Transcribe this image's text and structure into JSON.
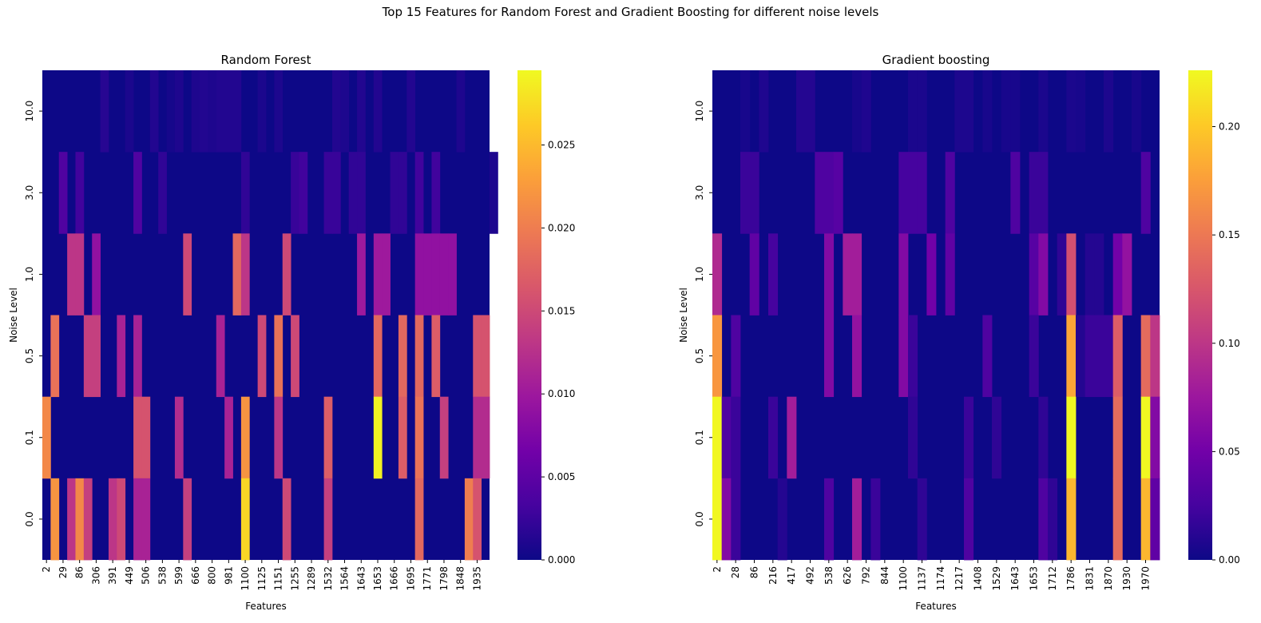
{
  "suptitle": "Top 15 Features for Random Forest and Gradient Boosting for different noise levels",
  "colormap": [
    "#0d0887",
    "#46039f",
    "#7201a8",
    "#9c179e",
    "#bd3786",
    "#d8576b",
    "#ed7953",
    "#fb9f3a",
    "#fdca26",
    "#f0f921"
  ],
  "chart_data": [
    {
      "type": "heatmap",
      "title": "Random Forest",
      "xlabel": "Features",
      "ylabel": "Noise Level",
      "rows": [
        "10.0",
        "3.0",
        "1.0",
        "0.5",
        "0.1",
        "0.0"
      ],
      "tick_labels": [
        "2",
        "29",
        "86",
        "306",
        "391",
        "449",
        "506",
        "538",
        "599",
        "666",
        "800",
        "981",
        "1100",
        "1125",
        "1151",
        "1255",
        "1289",
        "1532",
        "1564",
        "1643",
        "1653",
        "1666",
        "1695",
        "1771",
        "1798",
        "1848",
        "1935"
      ],
      "num_columns": 54,
      "colorbar": {
        "min": 0,
        "max": 0.0295,
        "ticks": [
          "0.000",
          "0.005",
          "0.010",
          "0.015",
          "0.020",
          "0.025"
        ]
      },
      "cells": [
        [
          [
            7,
            0.0015
          ],
          [
            10,
            0.0008
          ],
          [
            13,
            0.0012
          ],
          [
            15,
            0.0005
          ],
          [
            16,
            0.001
          ],
          [
            18,
            0.001
          ],
          [
            19,
            0.0012
          ],
          [
            20,
            0.001
          ],
          [
            21,
            0.0012
          ],
          [
            22,
            0.0012
          ],
          [
            23,
            0.0012
          ],
          [
            26,
            0.0008
          ],
          [
            28,
            0.0009
          ],
          [
            35,
            0.0012
          ],
          [
            36,
            0.0009
          ],
          [
            38,
            0.0012
          ],
          [
            40,
            0.0012
          ],
          [
            44,
            0.0012
          ],
          [
            50,
            0.001
          ]
        ],
        [
          [
            2,
            0.004
          ],
          [
            4,
            0.003
          ],
          [
            11,
            0.004
          ],
          [
            14,
            0.002
          ],
          [
            24,
            0.002
          ],
          [
            30,
            0.0025
          ],
          [
            31,
            0.003
          ],
          [
            34,
            0.0025
          ],
          [
            35,
            0.0025
          ],
          [
            37,
            0.002
          ],
          [
            38,
            0.002
          ],
          [
            42,
            0.002
          ],
          [
            43,
            0.002
          ],
          [
            45,
            0.003
          ],
          [
            47,
            0.003
          ],
          [
            54,
            0.001
          ]
        ],
        [
          [
            3,
            0.013
          ],
          [
            4,
            0.013
          ],
          [
            6,
            0.009
          ],
          [
            17,
            0.015
          ],
          [
            23,
            0.018
          ],
          [
            24,
            0.013
          ],
          [
            29,
            0.015
          ],
          [
            38,
            0.01
          ],
          [
            40,
            0.01
          ],
          [
            41,
            0.01
          ],
          [
            45,
            0.009
          ],
          [
            46,
            0.009
          ],
          [
            47,
            0.009
          ],
          [
            48,
            0.009
          ],
          [
            49,
            0.009
          ]
        ],
        [
          [
            1,
            0.019
          ],
          [
            5,
            0.014
          ],
          [
            6,
            0.014
          ],
          [
            9,
            0.011
          ],
          [
            11,
            0.011
          ],
          [
            21,
            0.011
          ],
          [
            26,
            0.015
          ],
          [
            28,
            0.019
          ],
          [
            30,
            0.015
          ],
          [
            40,
            0.018
          ],
          [
            43,
            0.018
          ],
          [
            45,
            0.018
          ],
          [
            47,
            0.017
          ],
          [
            52,
            0.016
          ],
          [
            53,
            0.016
          ]
        ],
        [
          [
            0,
            0.021
          ],
          [
            11,
            0.016
          ],
          [
            12,
            0.016
          ],
          [
            16,
            0.012
          ],
          [
            22,
            0.011
          ],
          [
            24,
            0.022
          ],
          [
            28,
            0.013
          ],
          [
            34,
            0.017
          ],
          [
            40,
            0.029
          ],
          [
            43,
            0.017
          ],
          [
            45,
            0.019
          ],
          [
            48,
            0.014
          ],
          [
            52,
            0.012
          ],
          [
            53,
            0.012
          ]
        ],
        [
          [
            1,
            0.022
          ],
          [
            3,
            0.013
          ],
          [
            4,
            0.021
          ],
          [
            5,
            0.014
          ],
          [
            8,
            0.013
          ],
          [
            9,
            0.015
          ],
          [
            11,
            0.011
          ],
          [
            12,
            0.011
          ],
          [
            17,
            0.014
          ],
          [
            24,
            0.027
          ],
          [
            29,
            0.015
          ],
          [
            34,
            0.014
          ],
          [
            45,
            0.018
          ],
          [
            51,
            0.02
          ],
          [
            52,
            0.016
          ]
        ]
      ]
    },
    {
      "type": "heatmap",
      "title": "Gradient boosting",
      "xlabel": "Features",
      "ylabel": "Noise Level",
      "rows": [
        "10.0",
        "3.0",
        "1.0",
        "0.5",
        "0.1",
        "0.0"
      ],
      "tick_labels": [
        "2",
        "28",
        "86",
        "216",
        "417",
        "492",
        "538",
        "626",
        "792",
        "844",
        "1100",
        "1137",
        "1174",
        "1217",
        "1408",
        "1529",
        "1643",
        "1653",
        "1712",
        "1786",
        "1831",
        "1870",
        "1930",
        "1970"
      ],
      "num_columns": 48,
      "colorbar": {
        "min": 0,
        "max": 0.226,
        "ticks": [
          "0.00",
          "0.05",
          "0.10",
          "0.15",
          "0.20"
        ]
      },
      "cells": [
        [
          [
            3,
            0.005
          ],
          [
            5,
            0.008
          ],
          [
            9,
            0.01
          ],
          [
            10,
            0.01
          ],
          [
            15,
            0.005
          ],
          [
            16,
            0.008
          ],
          [
            21,
            0.006
          ],
          [
            22,
            0.006
          ],
          [
            26,
            0.007
          ],
          [
            27,
            0.007
          ],
          [
            29,
            0.005
          ],
          [
            31,
            0.005
          ],
          [
            32,
            0.005
          ],
          [
            35,
            0.006
          ],
          [
            38,
            0.006
          ],
          [
            39,
            0.005
          ],
          [
            42,
            0.007
          ],
          [
            45,
            0.005
          ]
        ],
        [
          [
            3,
            0.02
          ],
          [
            4,
            0.02
          ],
          [
            11,
            0.03
          ],
          [
            12,
            0.03
          ],
          [
            13,
            0.035
          ],
          [
            20,
            0.025
          ],
          [
            21,
            0.025
          ],
          [
            22,
            0.025
          ],
          [
            25,
            0.03
          ],
          [
            32,
            0.03
          ],
          [
            34,
            0.02
          ],
          [
            35,
            0.02
          ],
          [
            46,
            0.03
          ]
        ],
        [
          [
            0,
            0.09
          ],
          [
            4,
            0.04
          ],
          [
            6,
            0.025
          ],
          [
            12,
            0.06
          ],
          [
            14,
            0.08
          ],
          [
            15,
            0.08
          ],
          [
            20,
            0.06
          ],
          [
            23,
            0.05
          ],
          [
            25,
            0.04
          ],
          [
            34,
            0.035
          ],
          [
            35,
            0.06
          ],
          [
            37,
            0.015
          ],
          [
            38,
            0.12
          ],
          [
            40,
            0.01
          ],
          [
            41,
            0.01
          ],
          [
            43,
            0.05
          ],
          [
            44,
            0.07
          ]
        ],
        [
          [
            0,
            0.17
          ],
          [
            2,
            0.03
          ],
          [
            12,
            0.06
          ],
          [
            15,
            0.07
          ],
          [
            20,
            0.06
          ],
          [
            21,
            0.02
          ],
          [
            29,
            0.03
          ],
          [
            34,
            0.02
          ],
          [
            38,
            0.18
          ],
          [
            39,
            0.01
          ],
          [
            40,
            0.02
          ],
          [
            41,
            0.02
          ],
          [
            42,
            0.02
          ],
          [
            43,
            0.13
          ],
          [
            46,
            0.14
          ],
          [
            47,
            0.1
          ]
        ],
        [
          [
            0,
            0.225
          ],
          [
            1,
            0.03
          ],
          [
            2,
            0.02
          ],
          [
            6,
            0.02
          ],
          [
            8,
            0.08
          ],
          [
            21,
            0.015
          ],
          [
            27,
            0.02
          ],
          [
            30,
            0.015
          ],
          [
            35,
            0.015
          ],
          [
            38,
            0.225
          ],
          [
            43,
            0.14
          ],
          [
            46,
            0.225
          ],
          [
            47,
            0.06
          ]
        ],
        [
          [
            0,
            0.225
          ],
          [
            1,
            0.06
          ],
          [
            2,
            0.02
          ],
          [
            7,
            0.01
          ],
          [
            12,
            0.03
          ],
          [
            15,
            0.08
          ],
          [
            17,
            0.02
          ],
          [
            22,
            0.015
          ],
          [
            27,
            0.03
          ],
          [
            35,
            0.03
          ],
          [
            36,
            0.015
          ],
          [
            38,
            0.19
          ],
          [
            43,
            0.14
          ],
          [
            46,
            0.19
          ],
          [
            47,
            0.04
          ]
        ]
      ]
    }
  ]
}
